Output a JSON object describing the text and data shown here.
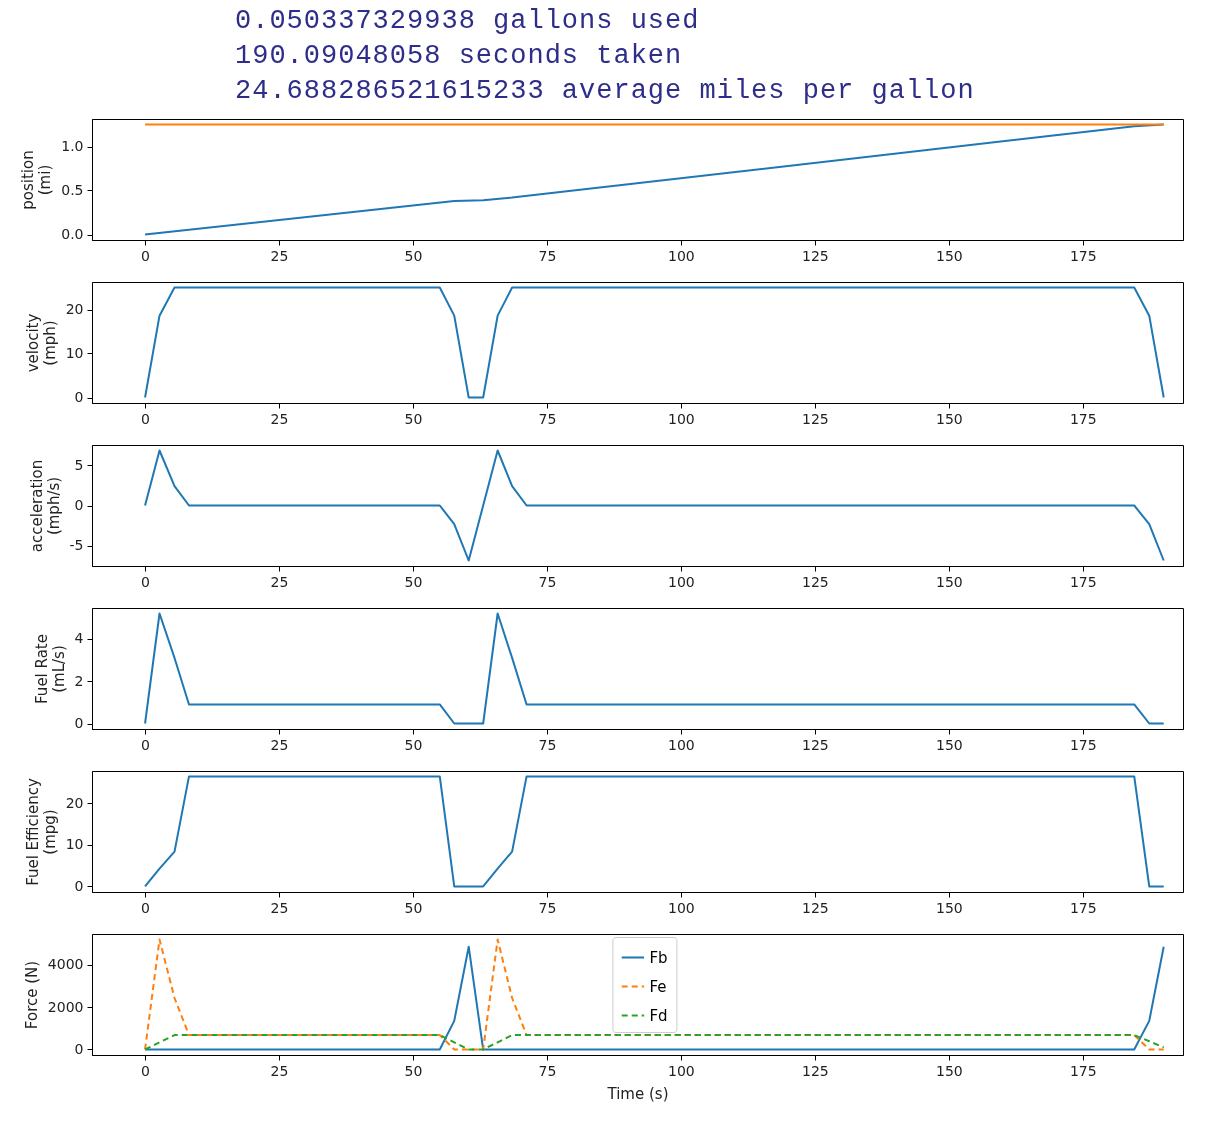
{
  "chart_data": [
    {
      "type": "line",
      "annotations": [
        "0.050337329938 gallons used",
        "190.09048058 seconds taken",
        "24.688286521615233 average miles per gallon"
      ],
      "ylabel": "position\n(mi)",
      "xlim": [
        -9.9,
        193.7
      ],
      "xticks": [
        0,
        25,
        50,
        75,
        100,
        125,
        150,
        175
      ],
      "ylim": [
        -0.0625,
        1.3125
      ],
      "yticks": [
        {
          "value": 0,
          "label": "0.0"
        },
        {
          "value": 0.5,
          "label": "0.5"
        },
        {
          "value": 1,
          "label": "1.0"
        }
      ],
      "grid": false,
      "legend": false,
      "series": [
        {
          "color": "#1f77b4",
          "x": [
            0,
            57.7,
            63.1,
            68.5,
            184.6,
            190.1
          ],
          "values": [
            0,
            0.38,
            0.39,
            0.42,
            1.23,
            1.25
          ]
        },
        {
          "color": "#ff7f0e",
          "x": [
            0,
            190.1
          ],
          "values": [
            1.25,
            1.25
          ]
        }
      ]
    },
    {
      "type": "line",
      "ylabel": "velocity\n(mph)",
      "xlim": [
        -9.9,
        193.7
      ],
      "xticks": [
        0,
        25,
        50,
        75,
        100,
        125,
        150,
        175
      ],
      "ylim": [
        -1.25,
        26.25
      ],
      "yticks": [
        0,
        10,
        20
      ],
      "grid": false,
      "legend": false,
      "x": [
        0,
        2.7,
        5.5,
        55,
        57.7,
        60.4,
        63.1,
        65.8,
        68.5,
        184.6,
        187.4,
        190.1
      ],
      "series": [
        {
          "color": "#1f77b4",
          "values": [
            0,
            18.6,
            25,
            25,
            18.6,
            0,
            0,
            18.6,
            25,
            25,
            18.6,
            0
          ]
        }
      ]
    },
    {
      "type": "line",
      "ylabel": "acceleration\n(mph/s)",
      "xlim": [
        -9.9,
        193.7
      ],
      "xticks": [
        0,
        25,
        50,
        75,
        100,
        125,
        150,
        175
      ],
      "ylim": [
        -7.48,
        7.48
      ],
      "yticks": [
        -5,
        0,
        5
      ],
      "grid": false,
      "legend": false,
      "x": [
        0,
        2.7,
        5.5,
        8.2,
        55,
        57.7,
        60.4,
        65.8,
        68.5,
        71.2,
        184.6,
        187.4,
        190.1
      ],
      "series": [
        {
          "color": "#1f77b4",
          "values": [
            0,
            6.8,
            2.4,
            0,
            0,
            -2.3,
            -6.8,
            6.8,
            2.4,
            0,
            0,
            -2.3,
            -6.8
          ]
        }
      ]
    },
    {
      "type": "line",
      "ylabel": "Fuel Rate\n(mL/s)",
      "xlim": [
        -9.9,
        193.7
      ],
      "xticks": [
        0,
        25,
        50,
        75,
        100,
        125,
        150,
        175
      ],
      "ylim": [
        -0.26,
        5.46
      ],
      "yticks": [
        0,
        2,
        4
      ],
      "grid": false,
      "legend": false,
      "x": [
        0,
        2.7,
        5.5,
        8.2,
        55,
        57.7,
        63.1,
        65.8,
        68.5,
        71.2,
        184.6,
        187.4,
        190.1
      ],
      "series": [
        {
          "color": "#1f77b4",
          "values": [
            0,
            5.2,
            3.1,
            0.9,
            0.9,
            0,
            0,
            5.2,
            3.1,
            0.9,
            0.9,
            0,
            0
          ]
        }
      ]
    },
    {
      "type": "line",
      "ylabel": "Fuel Efficiency\n(mpg)",
      "xlim": [
        -9.9,
        193.7
      ],
      "xticks": [
        0,
        25,
        50,
        75,
        100,
        125,
        150,
        175
      ],
      "ylim": [
        -1.33,
        27.8
      ],
      "yticks": [
        0,
        10,
        20
      ],
      "grid": false,
      "legend": false,
      "x": [
        0,
        2.7,
        5.5,
        8.2,
        55,
        57.7,
        63.1,
        65.8,
        68.5,
        71.2,
        184.6,
        187.4,
        190.1
      ],
      "series": [
        {
          "color": "#1f77b4",
          "values": [
            0,
            4.3,
            8.4,
            26.5,
            26.5,
            0,
            0,
            4.3,
            8.4,
            26.5,
            26.5,
            0,
            0
          ]
        }
      ]
    },
    {
      "type": "line",
      "xlabel": "Time (s)",
      "ylabel": "Force (N)",
      "xlim": [
        -9.9,
        193.7
      ],
      "xticks": [
        0,
        25,
        50,
        75,
        100,
        125,
        150,
        175
      ],
      "ylim": [
        -260,
        5450
      ],
      "yticks": [
        0,
        2000,
        4000
      ],
      "grid": false,
      "legend": "top",
      "x": [
        0,
        2.7,
        5.5,
        8.2,
        55,
        57.7,
        60.4,
        63.1,
        65.8,
        68.5,
        71.2,
        184.6,
        187.4,
        190.1
      ],
      "series": [
        {
          "name": "Fb",
          "color": "#1f77b4",
          "line_style": "solid",
          "values": [
            0,
            0,
            0,
            0,
            0,
            1350,
            4850,
            0,
            0,
            0,
            0,
            0,
            1350,
            4850
          ]
        },
        {
          "name": "Fe",
          "color": "#ff7f0e",
          "line_style": "dashed",
          "values": [
            0,
            5190,
            2430,
            680,
            680,
            0,
            0,
            0,
            5190,
            2430,
            680,
            680,
            0,
            0
          ]
        },
        {
          "name": "Fd",
          "color": "#2ca02c",
          "line_style": "dashed",
          "values": [
            0,
            340,
            680,
            680,
            680,
            340,
            0,
            0,
            340,
            680,
            680,
            680,
            390,
            100
          ]
        }
      ]
    }
  ]
}
